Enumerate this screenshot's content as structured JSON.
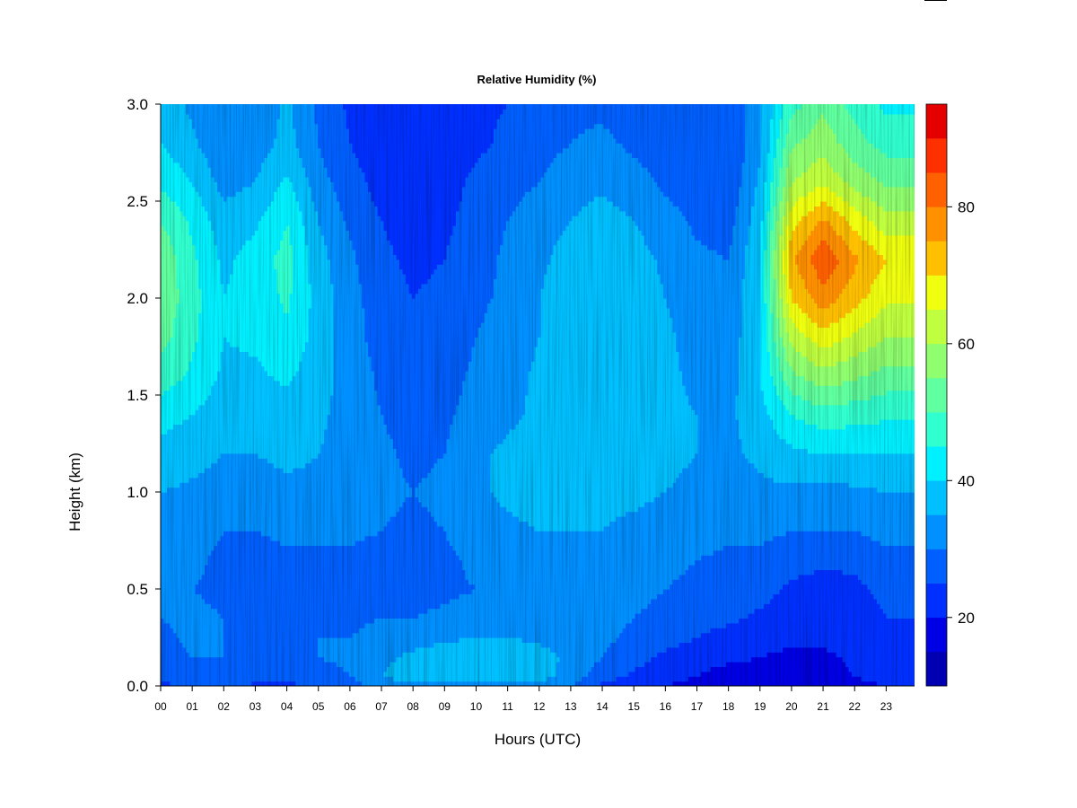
{
  "chart_data": {
    "type": "heatmap",
    "title": "Relative Humidity (%)",
    "xlabel": "Hours (UTC)",
    "ylabel": "Height (km)",
    "x_ticks": [
      "00",
      "01",
      "02",
      "03",
      "04",
      "05",
      "06",
      "07",
      "08",
      "09",
      "10",
      "11",
      "12",
      "13",
      "14",
      "15",
      "16",
      "17",
      "18",
      "19",
      "20",
      "21",
      "22",
      "23"
    ],
    "y_ticks": [
      "0.0",
      "0.5",
      "1.0",
      "1.5",
      "2.0",
      "2.5",
      "3.0"
    ],
    "xlim": [
      0,
      23.9
    ],
    "ylim": [
      0,
      3.0
    ],
    "x_hours": [
      0,
      1,
      2,
      3,
      4,
      5,
      6,
      7,
      8,
      9,
      10,
      11,
      12,
      13,
      14,
      15,
      16,
      17,
      18,
      19,
      20,
      21,
      22,
      23,
      23.9
    ],
    "y_km": [
      0.0,
      0.05,
      0.15,
      0.25,
      0.35,
      0.5,
      0.65,
      0.8,
      1.0,
      1.2,
      1.4,
      1.6,
      1.8,
      2.0,
      2.2,
      2.4,
      2.6,
      2.8,
      3.0
    ],
    "z_values": [
      [
        24,
        26,
        26,
        24,
        24,
        26,
        27,
        33,
        33,
        33,
        33,
        33,
        32,
        30,
        24,
        22,
        20,
        18,
        16,
        16,
        16,
        17,
        18,
        20,
        20
      ],
      [
        26,
        28,
        28,
        27,
        26,
        28,
        30,
        35,
        37,
        38,
        39,
        39,
        37,
        33,
        27,
        24,
        22,
        20,
        18,
        18,
        17,
        18,
        20,
        22,
        22
      ],
      [
        28,
        30,
        30,
        29,
        29,
        30,
        31,
        34,
        36,
        38,
        39,
        39,
        37,
        34,
        30,
        27,
        24,
        22,
        21,
        20,
        19,
        19,
        21,
        23,
        23
      ],
      [
        29,
        31,
        30,
        30,
        30,
        30,
        30,
        32,
        33,
        34,
        35,
        35,
        34,
        33,
        31,
        29,
        27,
        25,
        23,
        22,
        21,
        21,
        22,
        24,
        24
      ],
      [
        30,
        31,
        30,
        29,
        29,
        29,
        29,
        30,
        30,
        31,
        32,
        32,
        32,
        32,
        31,
        30,
        29,
        27,
        26,
        24,
        22,
        22,
        23,
        25,
        25
      ],
      [
        30,
        30,
        29,
        28,
        28,
        28,
        28,
        28,
        28,
        29,
        30,
        31,
        31,
        32,
        32,
        31,
        30,
        29,
        28,
        27,
        24,
        23,
        24,
        26,
        26
      ],
      [
        31,
        31,
        29,
        28,
        29,
        29,
        29,
        28,
        28,
        29,
        31,
        32,
        33,
        33,
        33,
        32,
        31,
        30,
        29,
        29,
        27,
        26,
        26,
        28,
        28
      ],
      [
        32,
        32,
        30,
        30,
        31,
        31,
        31,
        30,
        29,
        30,
        33,
        34,
        35,
        35,
        35,
        34,
        33,
        32,
        31,
        31,
        30,
        30,
        30,
        32,
        32
      ],
      [
        35,
        34,
        33,
        33,
        34,
        34,
        33,
        31,
        30,
        31,
        34,
        36,
        37,
        36,
        36,
        36,
        35,
        34,
        33,
        34,
        34,
        33,
        34,
        35,
        35
      ],
      [
        38,
        37,
        35,
        35,
        36,
        35,
        33,
        31,
        29,
        30,
        34,
        36,
        37,
        37,
        37,
        37,
        36,
        35,
        34,
        36,
        39,
        40,
        40,
        40,
        40
      ],
      [
        42,
        40,
        37,
        37,
        38,
        36,
        33,
        30,
        28,
        29,
        32,
        34,
        36,
        37,
        38,
        37,
        36,
        35,
        34,
        38,
        45,
        48,
        47,
        46,
        46
      ],
      [
        48,
        44,
        39,
        39,
        41,
        37,
        33,
        29,
        27,
        28,
        31,
        33,
        36,
        38,
        40,
        38,
        36,
        34,
        33,
        40,
        54,
        58,
        56,
        53,
        53
      ],
      [
        52,
        46,
        40,
        41,
        44,
        38,
        32,
        28,
        26,
        27,
        30,
        32,
        35,
        38,
        40,
        38,
        36,
        33,
        32,
        40,
        62,
        68,
        64,
        60,
        60
      ],
      [
        54,
        47,
        40,
        42,
        46,
        38,
        32,
        27,
        25,
        26,
        29,
        31,
        35,
        38,
        40,
        38,
        35,
        32,
        31,
        40,
        70,
        78,
        72,
        66,
        66
      ],
      [
        54,
        46,
        39,
        42,
        47,
        37,
        31,
        26,
        24,
        25,
        28,
        31,
        34,
        37,
        39,
        37,
        34,
        31,
        30,
        40,
        74,
        84,
        76,
        70,
        70
      ],
      [
        50,
        44,
        37,
        39,
        45,
        35,
        29,
        25,
        23,
        24,
        27,
        30,
        33,
        35,
        37,
        35,
        32,
        29,
        28,
        38,
        68,
        76,
        68,
        62,
        62
      ],
      [
        44,
        40,
        33,
        35,
        41,
        32,
        27,
        23,
        22,
        23,
        26,
        28,
        30,
        33,
        34,
        32,
        29,
        27,
        26,
        36,
        60,
        64,
        58,
        54,
        54
      ],
      [
        40,
        36,
        31,
        32,
        37,
        30,
        25,
        22,
        21,
        22,
        24,
        26,
        28,
        30,
        31,
        29,
        27,
        25,
        25,
        34,
        54,
        58,
        52,
        48,
        48
      ],
      [
        38,
        34,
        30,
        31,
        36,
        29,
        24,
        21,
        20,
        21,
        24,
        25,
        27,
        29,
        29,
        28,
        26,
        25,
        25,
        34,
        48,
        54,
        48,
        44,
        44
      ]
    ],
    "colorbar": {
      "breaks": [
        10,
        15,
        20,
        25,
        30,
        35,
        40,
        45,
        50,
        55,
        60,
        65,
        70,
        75,
        80,
        85,
        90,
        95
      ],
      "colors": [
        "#00007F",
        "#0000B2",
        "#0000E5",
        "#0030FF",
        "#0060FF",
        "#0090FF",
        "#00C0FF",
        "#00F0FF",
        "#30FFCF",
        "#60FF9F",
        "#90FF6F",
        "#C0FF3F",
        "#F0FF0F",
        "#FFC000",
        "#FF9000",
        "#FF6000",
        "#FF3000",
        "#E50000",
        "#B20000",
        "#7F0000"
      ],
      "tick_labels": [
        "20",
        "40",
        "60",
        "80"
      ],
      "tick_values": [
        20,
        40,
        60,
        80
      ]
    }
  }
}
